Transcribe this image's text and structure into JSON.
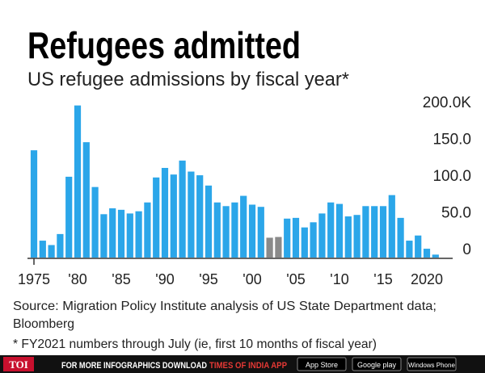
{
  "chart_data": {
    "type": "bar",
    "title": "Refugees admitted",
    "subtitle": "US refugee admissions by fiscal year*",
    "categories": [
      "1975",
      null,
      null,
      null,
      null,
      "'80",
      null,
      null,
      null,
      null,
      "'85",
      null,
      null,
      null,
      null,
      "'90",
      null,
      null,
      null,
      null,
      "'95",
      null,
      null,
      null,
      null,
      "'00",
      null,
      null,
      null,
      null,
      "'05",
      null,
      null,
      null,
      null,
      "'10",
      null,
      null,
      null,
      null,
      "'15",
      null,
      null,
      null,
      null,
      "2020",
      null
    ],
    "values": [
      146,
      23,
      17,
      32,
      110,
      207,
      157,
      96,
      59,
      67,
      65,
      60,
      63,
      75,
      109,
      122,
      113,
      132,
      117,
      112,
      98,
      75,
      70,
      75,
      84,
      72,
      69,
      27,
      28,
      53,
      54,
      41,
      48,
      60,
      75,
      73,
      56,
      58,
      70,
      70,
      70,
      85,
      54,
      23,
      30,
      12,
      4
    ],
    "colors": [
      "#2ba6e9",
      "#2ba6e9",
      "#2ba6e9",
      "#2ba6e9",
      "#2ba6e9",
      "#2ba6e9",
      "#2ba6e9",
      "#2ba6e9",
      "#2ba6e9",
      "#2ba6e9",
      "#2ba6e9",
      "#2ba6e9",
      "#2ba6e9",
      "#2ba6e9",
      "#2ba6e9",
      "#2ba6e9",
      "#2ba6e9",
      "#2ba6e9",
      "#2ba6e9",
      "#2ba6e9",
      "#2ba6e9",
      "#2ba6e9",
      "#2ba6e9",
      "#2ba6e9",
      "#2ba6e9",
      "#2ba6e9",
      "#2ba6e9",
      "#8a8a8a",
      "#8a8a8a",
      "#2ba6e9",
      "#2ba6e9",
      "#2ba6e9",
      "#2ba6e9",
      "#2ba6e9",
      "#2ba6e9",
      "#2ba6e9",
      "#2ba6e9",
      "#2ba6e9",
      "#2ba6e9",
      "#2ba6e9",
      "#2ba6e9",
      "#2ba6e9",
      "#2ba6e9",
      "#2ba6e9",
      "#2ba6e9",
      "#2ba6e9",
      "#2ba6e9"
    ],
    "ylim": [
      0,
      200
    ],
    "yticks": [
      {
        "value": 0,
        "label": "0"
      },
      {
        "value": 50,
        "label": "50.0"
      },
      {
        "value": 100,
        "label": "100.0"
      },
      {
        "value": 150,
        "label": "150.0"
      },
      {
        "value": 200,
        "label": "200.0K"
      }
    ],
    "grid": false,
    "source": "Source: Migration Policy Institute analysis of US State Department data;",
    "source2": "Bloomberg",
    "note": "* FY2021 numbers through July (ie, first 10 months of fiscal year)"
  },
  "footer": {
    "logo": "TOI",
    "text": "FOR MORE  INFOGRAPHICS DOWNLOAD",
    "app": "TIMES OF INDIA APP",
    "badges": [
      "App Store",
      "Google play",
      "Windows Phone"
    ]
  }
}
